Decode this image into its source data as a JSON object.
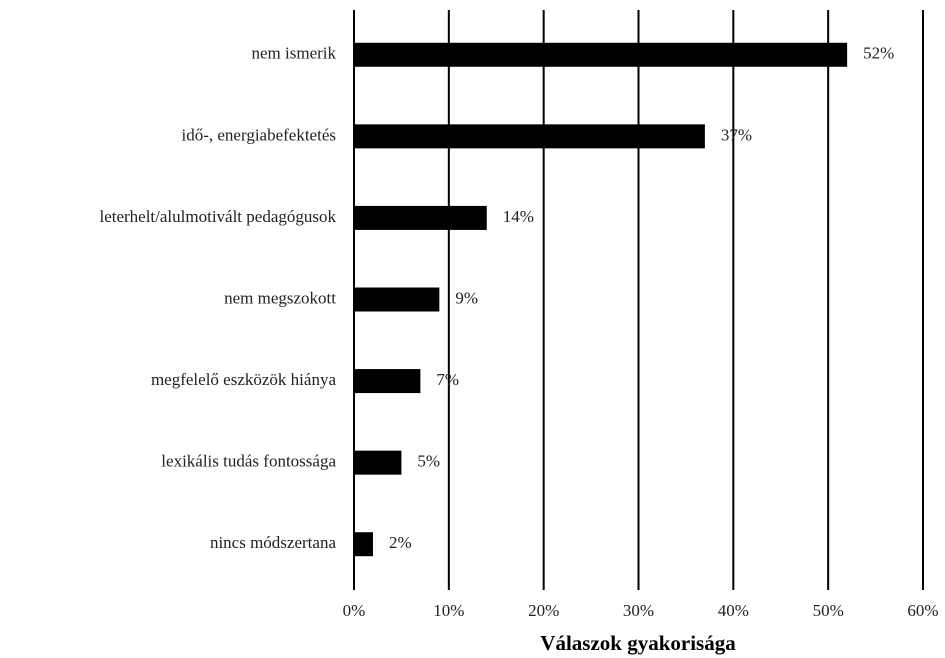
{
  "chart_data": {
    "type": "barh",
    "categories": [
      "nem ismerik",
      "idő-, energiabefektetés",
      "leterhelt/alulmotivált pedagógusok",
      "nem megszokott",
      "megfelelő eszközök hiánya",
      "lexikális tudás fontossága",
      "nincs módszertana"
    ],
    "values": [
      52,
      37,
      14,
      9,
      7,
      5,
      2
    ],
    "value_labels": [
      "52%",
      "37%",
      "14%",
      "9%",
      "7%",
      "5%",
      "2%"
    ],
    "color": "#000000",
    "xlabel": "Válaszok gyakorisága",
    "xlim": [
      0,
      60
    ],
    "xticks": [
      {
        "value": 0,
        "label": "0%"
      },
      {
        "value": 10,
        "label": "10%"
      },
      {
        "value": 20,
        "label": "20%"
      },
      {
        "value": 30,
        "label": "30%"
      },
      {
        "value": 40,
        "label": "40%"
      },
      {
        "value": 50,
        "label": "50%"
      },
      {
        "value": 60,
        "label": "60%"
      }
    ],
    "grid": true
  }
}
